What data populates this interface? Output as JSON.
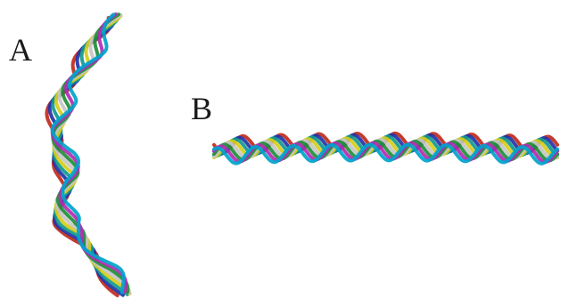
{
  "figure": {
    "panel_labels": [
      "A",
      "B"
    ]
  },
  "strands": {
    "colors": [
      "#c02a1c",
      "#2233a8",
      "#129a8e",
      "#d7cd1a",
      "#c6c6c6",
      "#1f8e3a",
      "#b02db3",
      "#00a4cc"
    ]
  }
}
